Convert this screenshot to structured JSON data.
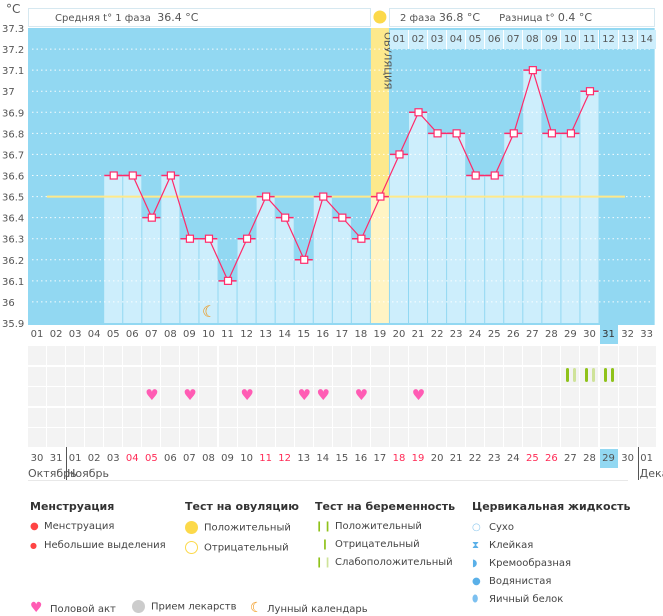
{
  "header": {
    "unit": "°C",
    "phase1_label": "Средняя t° 1 фаза",
    "phase1_value": "36.4 °C",
    "phase2_label": "2 фаза",
    "phase2_value": "36.8 °C",
    "diff_label": "Разница t°",
    "diff_value": "0.4 °C",
    "phase2_days": [
      "01",
      "02",
      "03",
      "04",
      "05",
      "06",
      "07",
      "08",
      "09",
      "10",
      "11",
      "12",
      "13",
      "14"
    ]
  },
  "chart_data": {
    "type": "line",
    "ylabel": "°C",
    "ylim": [
      35.9,
      37.3
    ],
    "yticks": [
      "37.3",
      "37.2",
      "37.1",
      "37",
      "36.9",
      "36.8",
      "36.7",
      "36.6",
      "36.5",
      "36.4",
      "36.3",
      "36.2",
      "36.1",
      "36",
      "35.9"
    ],
    "cycle_days": [
      "01",
      "02",
      "03",
      "04",
      "05",
      "06",
      "07",
      "08",
      "09",
      "10",
      "11",
      "12",
      "13",
      "14",
      "15",
      "16",
      "17",
      "18",
      "19",
      "20",
      "21",
      "22",
      "23",
      "24",
      "25",
      "26",
      "27",
      "28",
      "29",
      "30",
      "31",
      "32",
      "33"
    ],
    "temperatures": [
      null,
      null,
      null,
      null,
      36.6,
      36.6,
      36.4,
      36.6,
      36.3,
      36.3,
      36.1,
      36.3,
      36.5,
      36.4,
      36.2,
      36.5,
      36.4,
      36.3,
      36.5,
      36.7,
      36.9,
      36.8,
      36.8,
      36.6,
      36.6,
      36.8,
      37.1,
      36.8,
      36.8,
      37.0,
      null,
      null,
      null
    ],
    "coverline": 36.5,
    "ovulation_day": 19,
    "ovulation_label": "ОВУЛЯЦИЯ",
    "current_cycle_day": 31,
    "moon_days": [
      10
    ],
    "intercourse_days": [
      7,
      9,
      12,
      15,
      16,
      18,
      21
    ],
    "pregnancy_tests": [
      {
        "day": 29,
        "result": "weak"
      },
      {
        "day": 30,
        "result": "weak"
      },
      {
        "day": 31,
        "result": "positive"
      }
    ],
    "grid": true
  },
  "calendar": {
    "dates": [
      "30",
      "31",
      "01",
      "02",
      "03",
      "04",
      "05",
      "06",
      "07",
      "08",
      "09",
      "10",
      "11",
      "12",
      "13",
      "14",
      "15",
      "16",
      "17",
      "18",
      "19",
      "20",
      "21",
      "22",
      "23",
      "24",
      "25",
      "26",
      "27",
      "28",
      "29",
      "30",
      "01"
    ],
    "weekend_indices": [
      5,
      6,
      12,
      13,
      19,
      20,
      26,
      27
    ],
    "today_index": 30,
    "months": [
      "Октябрь",
      "Ноябрь",
      "Декабрь"
    ]
  },
  "colors": {
    "plot_bg": "#92d8f2",
    "bar": "#cdeefc",
    "line": "#ff2a6a",
    "coverline": "#ffe98a",
    "ovulation": "#fde98c",
    "heart": "#ff5cb4",
    "test": "#8fc21a",
    "test_weak": "#cfe39a",
    "weekend": "#ff2a55"
  },
  "legend": {
    "menstruation": {
      "title": "Менструация",
      "items": [
        "Менструация",
        "Небольшие выделения"
      ]
    },
    "ovulation_test": {
      "title": "Тест на овуляцию",
      "items": [
        "Положительный",
        "Отрицательный"
      ]
    },
    "pregnancy_test": {
      "title": "Тест на беременность",
      "items": [
        "Положительный",
        "Отрицательный",
        "Слабоположительный"
      ]
    },
    "cervical": {
      "title": "Цервикальная жидкость",
      "items": [
        "Сухо",
        "Клейкая",
        "Кремообразная",
        "Водянистая",
        "Яичный белок"
      ]
    },
    "other": [
      "Половой акт",
      "Прием лекарств",
      "Лунный календарь"
    ]
  }
}
